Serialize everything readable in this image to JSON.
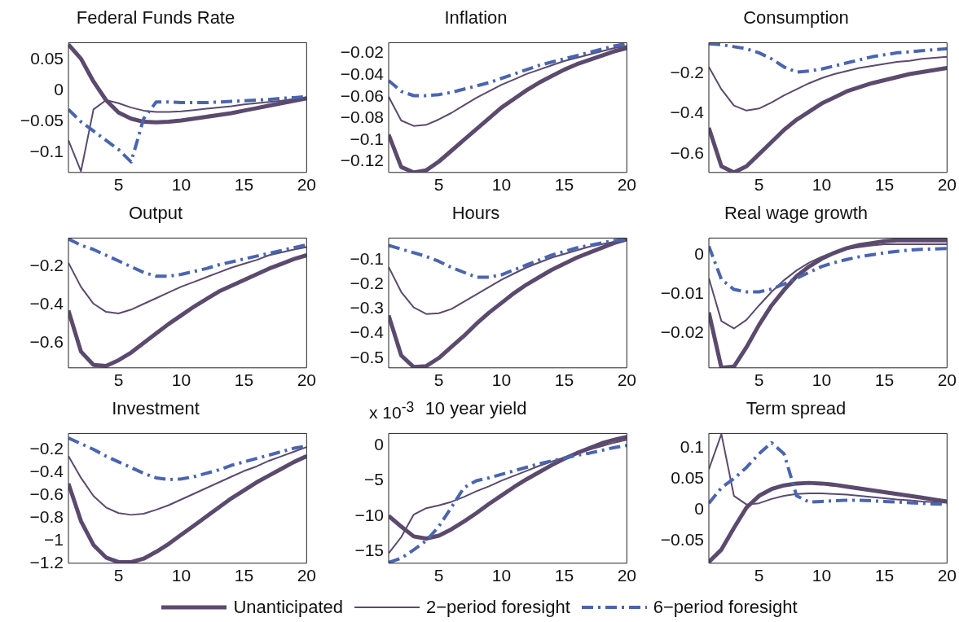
{
  "chart_data": [
    {
      "type": "line",
      "title": "Federal Funds Rate",
      "x": [
        1,
        2,
        3,
        4,
        5,
        6,
        7,
        8,
        9,
        10,
        11,
        12,
        13,
        14,
        15,
        16,
        17,
        18,
        19,
        20
      ],
      "xlim": [
        1,
        20
      ],
      "xticks": [
        5,
        10,
        15,
        20
      ],
      "ylim": [
        -0.132,
        0.078
      ],
      "yticks": [
        -0.1,
        -0.05,
        0,
        0.05
      ],
      "grid": false,
      "series": [
        {
          "color": "#5b4a6e",
          "line_style": "solid",
          "values": [
            0.075,
            0.052,
            0.015,
            -0.015,
            -0.035,
            -0.045,
            -0.05,
            -0.051,
            -0.05,
            -0.048,
            -0.045,
            -0.042,
            -0.039,
            -0.036,
            -0.032,
            -0.028,
            -0.024,
            -0.02,
            -0.016,
            -0.012
          ]
        },
        {
          "color": "#5b4a6e",
          "line_style": "solid",
          "values": [
            -0.08,
            -0.13,
            -0.03,
            -0.015,
            -0.02,
            -0.027,
            -0.032,
            -0.034,
            -0.034,
            -0.033,
            -0.031,
            -0.029,
            -0.027,
            -0.025,
            -0.022,
            -0.02,
            -0.018,
            -0.016,
            -0.013,
            -0.011
          ]
        },
        {
          "color": "#4a65b0",
          "line_style": "dashed",
          "values": [
            -0.03,
            -0.05,
            -0.065,
            -0.08,
            -0.095,
            -0.115,
            -0.045,
            -0.018,
            -0.018,
            -0.019,
            -0.019,
            -0.019,
            -0.018,
            -0.017,
            -0.016,
            -0.015,
            -0.014,
            -0.012,
            -0.011,
            -0.009
          ]
        }
      ]
    },
    {
      "type": "line",
      "title": "Inflation",
      "x": [
        1,
        2,
        3,
        4,
        5,
        6,
        7,
        8,
        9,
        10,
        11,
        12,
        13,
        14,
        15,
        16,
        17,
        18,
        19,
        20
      ],
      "xlim": [
        1,
        20
      ],
      "xticks": [
        5,
        10,
        15,
        20
      ],
      "ylim": [
        -0.13,
        -0.01
      ],
      "yticks": [
        -0.12,
        -0.1,
        -0.08,
        -0.06,
        -0.04,
        -0.02
      ],
      "grid": false,
      "series": [
        {
          "color": "#5b4a6e",
          "line_style": "solid",
          "values": [
            -0.095,
            -0.125,
            -0.13,
            -0.128,
            -0.12,
            -0.11,
            -0.1,
            -0.09,
            -0.08,
            -0.07,
            -0.062,
            -0.054,
            -0.047,
            -0.041,
            -0.035,
            -0.03,
            -0.026,
            -0.022,
            -0.018,
            -0.015
          ]
        },
        {
          "color": "#5b4a6e",
          "line_style": "solid",
          "values": [
            -0.06,
            -0.082,
            -0.087,
            -0.086,
            -0.081,
            -0.075,
            -0.068,
            -0.061,
            -0.055,
            -0.049,
            -0.044,
            -0.039,
            -0.035,
            -0.031,
            -0.027,
            -0.024,
            -0.021,
            -0.018,
            -0.015,
            -0.013
          ]
        },
        {
          "color": "#4a65b0",
          "line_style": "dashed",
          "values": [
            -0.045,
            -0.055,
            -0.059,
            -0.059,
            -0.058,
            -0.056,
            -0.053,
            -0.05,
            -0.047,
            -0.043,
            -0.039,
            -0.035,
            -0.031,
            -0.028,
            -0.025,
            -0.022,
            -0.019,
            -0.016,
            -0.013,
            -0.011
          ]
        }
      ]
    },
    {
      "type": "line",
      "title": "Consumption",
      "x": [
        1,
        2,
        3,
        4,
        5,
        6,
        7,
        8,
        9,
        10,
        11,
        12,
        13,
        14,
        15,
        16,
        17,
        18,
        19,
        20
      ],
      "xlim": [
        1,
        20
      ],
      "xticks": [
        5,
        10,
        15,
        20
      ],
      "ylim": [
        -0.69,
        -0.05
      ],
      "yticks": [
        -0.6,
        -0.4,
        -0.2
      ],
      "grid": false,
      "series": [
        {
          "color": "#5b4a6e",
          "line_style": "solid",
          "values": [
            -0.47,
            -0.66,
            -0.69,
            -0.66,
            -0.6,
            -0.54,
            -0.48,
            -0.43,
            -0.39,
            -0.35,
            -0.32,
            -0.29,
            -0.27,
            -0.25,
            -0.235,
            -0.22,
            -0.205,
            -0.195,
            -0.185,
            -0.175
          ]
        },
        {
          "color": "#5b4a6e",
          "line_style": "solid",
          "values": [
            -0.17,
            -0.28,
            -0.36,
            -0.385,
            -0.375,
            -0.345,
            -0.31,
            -0.28,
            -0.25,
            -0.225,
            -0.205,
            -0.19,
            -0.175,
            -0.165,
            -0.155,
            -0.145,
            -0.14,
            -0.13,
            -0.125,
            -0.12
          ]
        },
        {
          "color": "#4a65b0",
          "line_style": "dashed",
          "values": [
            -0.055,
            -0.06,
            -0.07,
            -0.08,
            -0.1,
            -0.13,
            -0.17,
            -0.195,
            -0.19,
            -0.18,
            -0.165,
            -0.15,
            -0.135,
            -0.12,
            -0.11,
            -0.1,
            -0.095,
            -0.09,
            -0.085,
            -0.08
          ]
        }
      ]
    },
    {
      "type": "line",
      "title": "Output",
      "x": [
        1,
        2,
        3,
        4,
        5,
        6,
        7,
        8,
        9,
        10,
        11,
        12,
        13,
        14,
        15,
        16,
        17,
        18,
        19,
        20
      ],
      "xlim": [
        1,
        20
      ],
      "xticks": [
        5,
        10,
        15,
        20
      ],
      "ylim": [
        -0.73,
        -0.05
      ],
      "yticks": [
        -0.6,
        -0.4,
        -0.2
      ],
      "grid": false,
      "series": [
        {
          "color": "#5b4a6e",
          "line_style": "solid",
          "values": [
            -0.43,
            -0.645,
            -0.715,
            -0.72,
            -0.69,
            -0.65,
            -0.6,
            -0.55,
            -0.5,
            -0.455,
            -0.41,
            -0.37,
            -0.33,
            -0.3,
            -0.27,
            -0.24,
            -0.21,
            -0.185,
            -0.16,
            -0.14
          ]
        },
        {
          "color": "#5b4a6e",
          "line_style": "solid",
          "values": [
            -0.18,
            -0.306,
            -0.394,
            -0.437,
            -0.445,
            -0.425,
            -0.395,
            -0.365,
            -0.335,
            -0.305,
            -0.28,
            -0.255,
            -0.23,
            -0.205,
            -0.185,
            -0.165,
            -0.14,
            -0.125,
            -0.11,
            -0.097
          ]
        },
        {
          "color": "#4a65b0",
          "line_style": "dashed",
          "values": [
            -0.055,
            -0.087,
            -0.11,
            -0.14,
            -0.17,
            -0.2,
            -0.23,
            -0.25,
            -0.25,
            -0.24,
            -0.225,
            -0.21,
            -0.19,
            -0.175,
            -0.16,
            -0.145,
            -0.13,
            -0.115,
            -0.1,
            -0.085
          ]
        }
      ]
    },
    {
      "type": "line",
      "title": "Hours",
      "x": [
        1,
        2,
        3,
        4,
        5,
        6,
        7,
        8,
        9,
        10,
        11,
        12,
        13,
        14,
        15,
        16,
        17,
        18,
        19,
        20
      ],
      "xlim": [
        1,
        20
      ],
      "xticks": [
        5,
        10,
        15,
        20
      ],
      "ylim": [
        -0.54,
        -0.01
      ],
      "yticks": [
        -0.5,
        -0.4,
        -0.3,
        -0.2,
        -0.1
      ],
      "grid": false,
      "series": [
        {
          "color": "#5b4a6e",
          "line_style": "solid",
          "values": [
            -0.326,
            -0.489,
            -0.537,
            -0.533,
            -0.5,
            -0.455,
            -0.41,
            -0.36,
            -0.315,
            -0.275,
            -0.235,
            -0.2,
            -0.17,
            -0.14,
            -0.115,
            -0.09,
            -0.07,
            -0.05,
            -0.03,
            -0.015
          ]
        },
        {
          "color": "#5b4a6e",
          "line_style": "solid",
          "values": [
            -0.128,
            -0.23,
            -0.293,
            -0.32,
            -0.317,
            -0.3,
            -0.27,
            -0.24,
            -0.21,
            -0.18,
            -0.155,
            -0.13,
            -0.11,
            -0.09,
            -0.075,
            -0.06,
            -0.045,
            -0.035,
            -0.025,
            -0.015
          ]
        },
        {
          "color": "#4a65b0",
          "line_style": "dashed",
          "values": [
            -0.04,
            -0.055,
            -0.07,
            -0.085,
            -0.105,
            -0.13,
            -0.15,
            -0.17,
            -0.17,
            -0.16,
            -0.14,
            -0.12,
            -0.1,
            -0.08,
            -0.065,
            -0.05,
            -0.04,
            -0.03,
            -0.02,
            -0.015
          ]
        }
      ]
    },
    {
      "type": "line",
      "title": "Real wage growth",
      "x": [
        1,
        2,
        3,
        4,
        5,
        6,
        7,
        8,
        9,
        10,
        11,
        12,
        13,
        14,
        15,
        16,
        17,
        18,
        19,
        20
      ],
      "xlim": [
        1,
        20
      ],
      "xticks": [
        5,
        10,
        15,
        20
      ],
      "ylim": [
        -0.029,
        0.0043
      ],
      "yticks": [
        -0.02,
        -0.01,
        0
      ],
      "grid": false,
      "series": [
        {
          "color": "#5b4a6e",
          "line_style": "solid",
          "values": [
            -0.0148,
            -0.029,
            -0.0287,
            -0.0237,
            -0.018,
            -0.013,
            -0.009,
            -0.0055,
            -0.003,
            -0.001,
            0.0005,
            0.0017,
            0.0025,
            0.003,
            0.0035,
            0.0037,
            0.0037,
            0.0037,
            0.0037,
            0.0037
          ]
        },
        {
          "color": "#5b4a6e",
          "line_style": "solid",
          "values": [
            -0.006,
            -0.017,
            -0.0189,
            -0.0167,
            -0.013,
            -0.0095,
            -0.0065,
            -0.004,
            -0.002,
            -0.0005,
            0.0007,
            0.0015,
            0.002,
            0.0024,
            0.0027,
            0.0027,
            0.0027,
            0.0027,
            0.0027,
            0.0027
          ]
        },
        {
          "color": "#4a65b0",
          "line_style": "dashed",
          "values": [
            0.0022,
            -0.0063,
            -0.0089,
            -0.0095,
            -0.0095,
            -0.0088,
            -0.0075,
            -0.006,
            -0.0045,
            -0.003,
            -0.002,
            -0.0012,
            -0.0005,
            0,
            0.0005,
            0.0009,
            0.0012,
            0.0014,
            0.0015,
            0.0016
          ]
        }
      ]
    },
    {
      "type": "line",
      "title": "Investment",
      "x": [
        1,
        2,
        3,
        4,
        5,
        6,
        7,
        8,
        9,
        10,
        11,
        12,
        13,
        14,
        15,
        16,
        17,
        18,
        19,
        20
      ],
      "xlim": [
        1,
        20
      ],
      "xticks": [
        5,
        10,
        15,
        20
      ],
      "ylim": [
        -1.2,
        -0.06
      ],
      "yticks": [
        -1.2,
        -1,
        -0.8,
        -0.6,
        -0.4,
        -0.2
      ],
      "grid": false,
      "series": [
        {
          "color": "#5b4a6e",
          "line_style": "solid",
          "values": [
            -0.5,
            -0.83,
            -1.04,
            -1.15,
            -1.19,
            -1.19,
            -1.16,
            -1.1,
            -1.03,
            -0.95,
            -0.87,
            -0.79,
            -0.71,
            -0.63,
            -0.56,
            -0.49,
            -0.43,
            -0.37,
            -0.31,
            -0.26
          ]
        },
        {
          "color": "#5b4a6e",
          "line_style": "solid",
          "values": [
            -0.26,
            -0.45,
            -0.61,
            -0.71,
            -0.76,
            -0.775,
            -0.765,
            -0.73,
            -0.69,
            -0.64,
            -0.59,
            -0.54,
            -0.49,
            -0.44,
            -0.39,
            -0.35,
            -0.3,
            -0.26,
            -0.22,
            -0.18
          ]
        },
        {
          "color": "#4a65b0",
          "line_style": "dashed",
          "values": [
            -0.1,
            -0.15,
            -0.2,
            -0.26,
            -0.31,
            -0.36,
            -0.41,
            -0.45,
            -0.465,
            -0.46,
            -0.44,
            -0.41,
            -0.38,
            -0.34,
            -0.31,
            -0.28,
            -0.25,
            -0.22,
            -0.19,
            -0.17
          ]
        }
      ]
    },
    {
      "type": "line",
      "title": "10 year yield",
      "annotations": [
        "x 10$^{-3}$"
      ],
      "x": [
        1,
        2,
        3,
        4,
        5,
        6,
        7,
        8,
        9,
        10,
        11,
        12,
        13,
        14,
        15,
        16,
        17,
        18,
        19,
        20
      ],
      "xlim": [
        1,
        20
      ],
      "xticks": [
        5,
        10,
        15,
        20
      ],
      "ylim": [
        -16.7,
        1.7
      ],
      "yticks": [
        -15,
        -10,
        -5,
        0
      ],
      "grid": false,
      "series": [
        {
          "color": "#5b4a6e",
          "line_style": "solid",
          "values": [
            -10,
            -11.5,
            -12.9,
            -13.2,
            -12.8,
            -11.9,
            -10.8,
            -9.6,
            -8.3,
            -7.1,
            -5.9,
            -4.8,
            -3.8,
            -2.8,
            -1.9,
            -1.1,
            -0.4,
            0.3,
            0.8,
            1.2
          ]
        },
        {
          "color": "#5b4a6e",
          "line_style": "solid",
          "values": [
            -15.3,
            -13,
            -9.8,
            -8.9,
            -8.5,
            -8,
            -7.3,
            -6.5,
            -5.8,
            -5,
            -4.3,
            -3.6,
            -2.9,
            -2.3,
            -1.7,
            -1.1,
            -0.6,
            -0.1,
            0.4,
            0.8
          ]
        },
        {
          "color": "#4a65b0",
          "line_style": "dashed",
          "values": [
            -16.6,
            -16,
            -14.8,
            -13.5,
            -11.5,
            -8.8,
            -6,
            -5,
            -4.6,
            -4.1,
            -3.6,
            -3.1,
            -2.6,
            -2.2,
            -1.8,
            -1.4,
            -1.1,
            -0.7,
            -0.3,
            0
          ]
        }
      ]
    },
    {
      "type": "line",
      "title": "Term spread",
      "legend": "bottom",
      "x": [
        1,
        2,
        3,
        4,
        5,
        6,
        7,
        8,
        9,
        10,
        11,
        12,
        13,
        14,
        15,
        16,
        17,
        18,
        19,
        20
      ],
      "xlim": [
        1,
        20
      ],
      "xticks": [
        5,
        10,
        15,
        20
      ],
      "ylim": [
        -0.087,
        0.123
      ],
      "yticks": [
        -0.05,
        0,
        0.05,
        0.1
      ],
      "grid": false,
      "series": [
        {
          "name": "Unanticipated",
          "color": "#5b4a6e",
          "line_style": "solid",
          "values": [
            -0.085,
            -0.065,
            -0.03,
            0.003,
            0.022,
            0.033,
            0.039,
            0.042,
            0.043,
            0.042,
            0.04,
            0.037,
            0.034,
            0.031,
            0.028,
            0.025,
            0.022,
            0.019,
            0.016,
            0.013
          ]
        },
        {
          "name": "2−period foresight",
          "color": "#5b4a6e",
          "line_style": "solid",
          "values": [
            0.065,
            0.122,
            0.022,
            0.008,
            0.01,
            0.017,
            0.022,
            0.025,
            0.026,
            0.026,
            0.025,
            0.024,
            0.022,
            0.02,
            0.018,
            0.016,
            0.015,
            0.013,
            0.012,
            0.011
          ]
        },
        {
          "name": "6−period foresight",
          "color": "#4a65b0",
          "line_style": "dashed",
          "values": [
            0.01,
            0.035,
            0.05,
            0.068,
            0.09,
            0.108,
            0.09,
            0.022,
            0.012,
            0.013,
            0.014,
            0.015,
            0.015,
            0.014,
            0.013,
            0.012,
            0.011,
            0.01,
            0.009,
            0.008
          ]
        }
      ]
    }
  ]
}
